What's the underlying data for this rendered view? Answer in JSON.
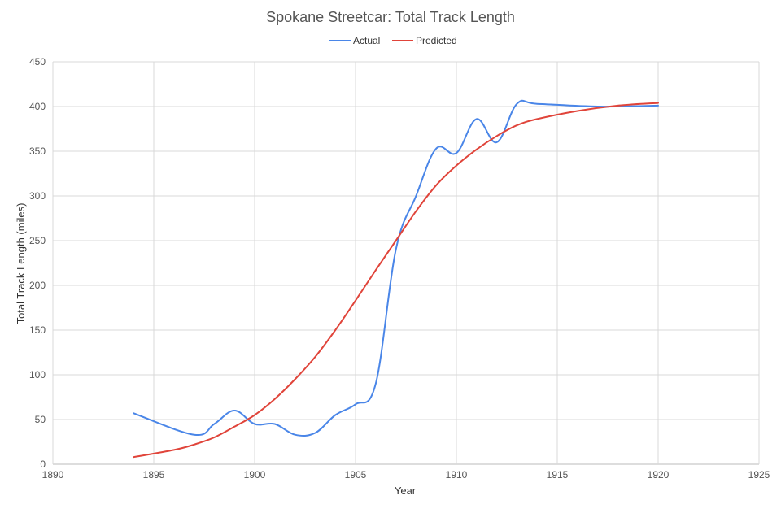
{
  "chart_data": {
    "type": "line",
    "title": "Spokane Streetcar: Total Track Length",
    "xlabel": "Year",
    "ylabel": "Total Track Length (miles)",
    "xlim": [
      1890,
      1925
    ],
    "ylim": [
      0,
      450
    ],
    "x_ticks": [
      1890,
      1895,
      1900,
      1905,
      1910,
      1915,
      1920,
      1925
    ],
    "y_ticks": [
      0,
      50,
      100,
      150,
      200,
      250,
      300,
      350,
      400,
      450
    ],
    "grid": true,
    "legend_position": "top",
    "series": [
      {
        "name": "Actual",
        "color": "#4a86e8",
        "x": [
          1894,
          1897,
          1898,
          1899,
          1900,
          1901,
          1902,
          1903,
          1904,
          1905,
          1906,
          1907,
          1908,
          1909,
          1910,
          1911,
          1912,
          1913,
          1914,
          1917,
          1920
        ],
        "y": [
          57,
          33,
          45,
          60,
          45,
          45,
          33,
          35,
          55,
          67,
          90,
          240,
          300,
          353,
          348,
          386,
          360,
          403,
          403,
          400,
          401
        ]
      },
      {
        "name": "Predicted",
        "color": "#e0443a",
        "x": [
          1894,
          1896,
          1897,
          1898,
          1899,
          1900,
          1901,
          1902,
          1903,
          1904,
          1905,
          1906,
          1907,
          1908,
          1909,
          1910,
          1911,
          1912,
          1913,
          1914,
          1916,
          1918,
          1920
        ],
        "y": [
          8,
          16,
          22,
          30,
          42,
          55,
          73,
          95,
          120,
          150,
          183,
          217,
          250,
          283,
          312,
          334,
          352,
          367,
          379,
          386,
          395,
          401,
          404
        ]
      }
    ]
  }
}
